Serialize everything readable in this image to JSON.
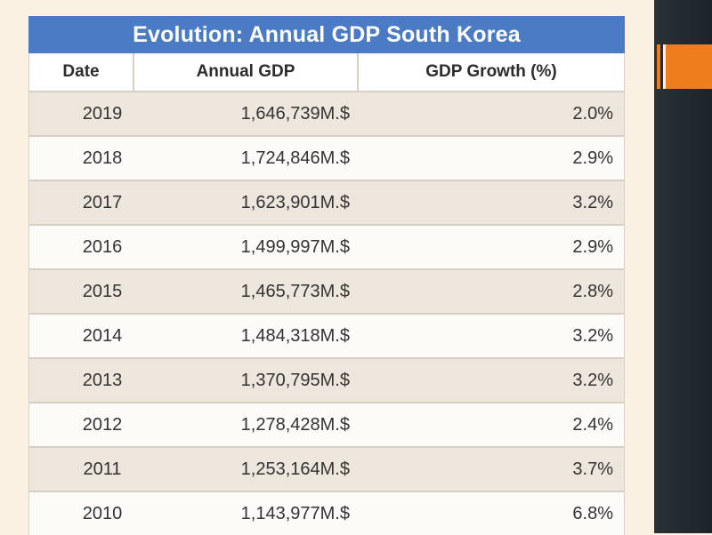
{
  "colors": {
    "title_bar": "#4a7bc4",
    "page_background": "#fbf1e3",
    "row_shaded": "#ece6dc",
    "row_plain": "#fdfbf8",
    "side_panel": "#222a30",
    "accent": "#f07d1d"
  },
  "chart_data": {
    "type": "table",
    "title": "Evolution: Annual GDP South Korea",
    "columns": [
      "Date",
      "Annual GDP",
      "GDP Growth (%)"
    ],
    "rows": [
      {
        "date": "2019",
        "gdp": "1,646,739M.$",
        "growth": "2.0%"
      },
      {
        "date": "2018",
        "gdp": "1,724,846M.$",
        "growth": "2.9%"
      },
      {
        "date": "2017",
        "gdp": "1,623,901M.$",
        "growth": "3.2%"
      },
      {
        "date": "2016",
        "gdp": "1,499,997M.$",
        "growth": "2.9%"
      },
      {
        "date": "2015",
        "gdp": "1,465,773M.$",
        "growth": "2.8%"
      },
      {
        "date": "2014",
        "gdp": "1,484,318M.$",
        "growth": "3.2%"
      },
      {
        "date": "2013",
        "gdp": "1,370,795M.$",
        "growth": "3.2%"
      },
      {
        "date": "2012",
        "gdp": "1,278,428M.$",
        "growth": "2.4%"
      },
      {
        "date": "2011",
        "gdp": "1,253,164M.$",
        "growth": "3.7%"
      },
      {
        "date": "2010",
        "gdp": "1,143,977M.$",
        "growth": "6.8%"
      }
    ]
  }
}
